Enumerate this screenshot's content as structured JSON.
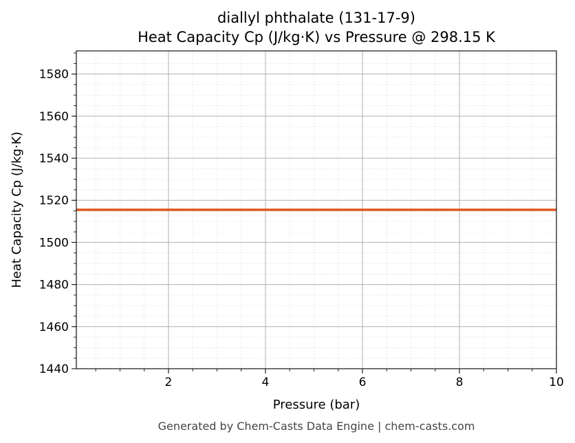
{
  "chart_data": {
    "type": "line",
    "title": "diallyl phthalate (131-17-9)",
    "subtitle": "Heat Capacity Cp (J/kg·K) vs Pressure @ 298.15 K",
    "xlabel": "Pressure (bar)",
    "ylabel": "Heat Capacity Cp (J/kg·K)",
    "xlim": [
      0.1,
      10
    ],
    "ylim": [
      1440,
      1591
    ],
    "xticks": [
      2,
      4,
      6,
      8,
      10
    ],
    "yticks": [
      1440,
      1460,
      1480,
      1500,
      1520,
      1540,
      1560,
      1580
    ],
    "grid": true,
    "series": [
      {
        "name": "Cp",
        "color": "#e0561f",
        "x": [
          0.1,
          10
        ],
        "y": [
          1515.5,
          1515.5
        ]
      }
    ]
  },
  "footer": "Generated by Chem-Casts Data Engine | chem-casts.com"
}
